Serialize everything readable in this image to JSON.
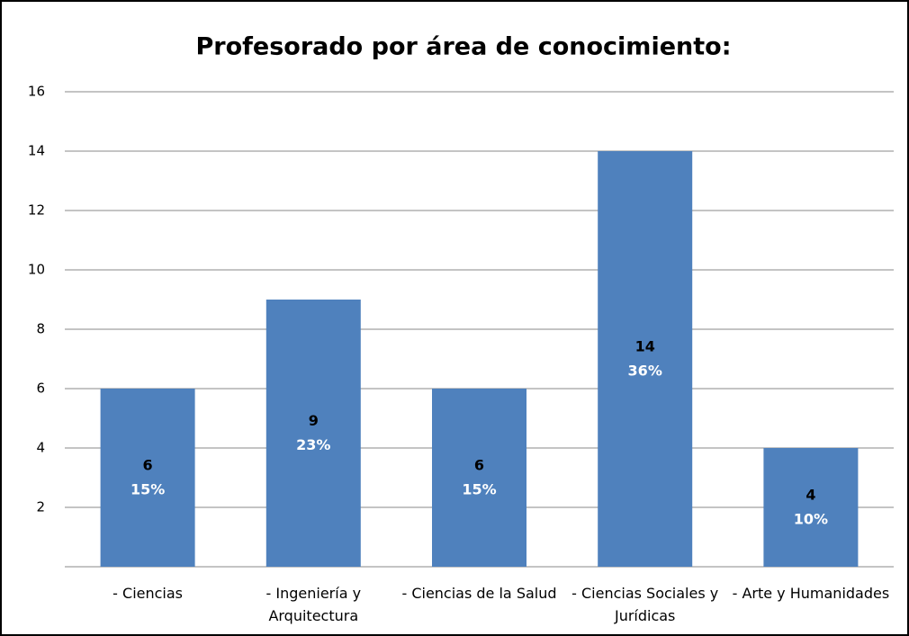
{
  "chart_data": {
    "type": "bar",
    "title": "Profesorado por área de conocimiento:",
    "categories": [
      "- Ciencias",
      "- Ingeniería y Arquitectura",
      "- Ciencias de la Salud",
      "- Ciencias Sociales y Jurídicas",
      "- Arte y Humanidades"
    ],
    "values": [
      6,
      9,
      6,
      14,
      4
    ],
    "percent_labels": [
      "15%",
      "23%",
      "15%",
      "36%",
      "10%"
    ],
    "color": "#4f81bd",
    "ylim": [
      0,
      16
    ],
    "yticks": [
      2,
      4,
      6,
      8,
      10,
      12,
      14,
      16
    ],
    "grid": true
  }
}
